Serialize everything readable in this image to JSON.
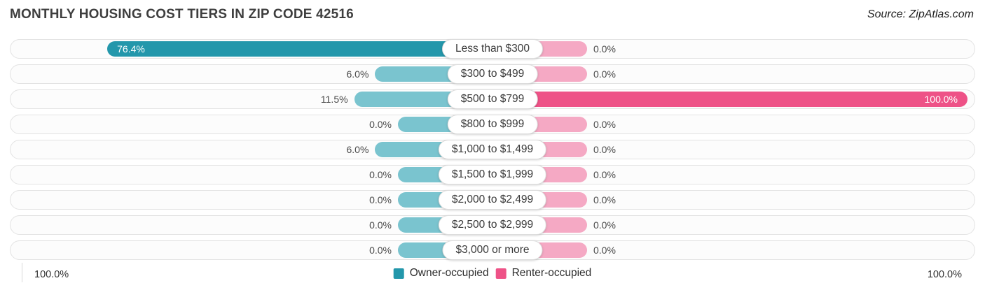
{
  "header": {
    "title": "MONTHLY HOUSING COST TIERS IN ZIP CODE 42516",
    "source": "Source: ZipAtlas.com"
  },
  "chart_data": {
    "type": "bar",
    "orientation": "diverging-horizontal",
    "title": "Monthly Housing Cost Tiers in Zip Code 42516",
    "categories": [
      "Less than $300",
      "$300 to $499",
      "$500 to $799",
      "$800 to $999",
      "$1,000 to $1,499",
      "$1,500 to $1,999",
      "$2,000 to $2,499",
      "$2,500 to $2,999",
      "$3,000 or more"
    ],
    "series": [
      {
        "name": "Owner-occupied",
        "values": [
          76.4,
          6.0,
          11.5,
          0.0,
          6.0,
          0.0,
          0.0,
          0.0,
          0.0
        ]
      },
      {
        "name": "Renter-occupied",
        "values": [
          0.0,
          0.0,
          100.0,
          0.0,
          0.0,
          0.0,
          0.0,
          0.0,
          0.0
        ]
      }
    ],
    "value_format": "percent",
    "xlim": [
      0,
      100
    ],
    "axis": {
      "left_label": "100.0%",
      "right_label": "100.0%"
    },
    "legend": [
      {
        "label": "Owner-occupied",
        "color": "#2397AB"
      },
      {
        "label": "Renter-occupied",
        "color": "#EE5287"
      }
    ],
    "colors": {
      "owner_high": "#2397AB",
      "owner_low": "#7AC4CF",
      "renter_high": "#EE5287",
      "renter_low": "#F5A9C4",
      "track_bg": "#fcfcfc",
      "track_border": "#e3e3e3"
    }
  }
}
